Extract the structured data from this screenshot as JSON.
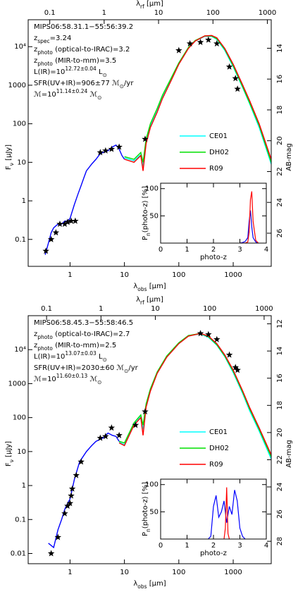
{
  "chart_data": [
    {
      "type": "line",
      "xlog": true,
      "ylog": true,
      "xlim": [
        0.17,
        5000
      ],
      "xticks": [
        1,
        10,
        100,
        1000
      ],
      "x2lim": [
        0.0401,
        1179
      ],
      "x2ticks": [
        0.1,
        1,
        10,
        100,
        1000
      ],
      "ylim": [
        0.02,
        50000
      ],
      "yticks": [
        {
          "value": 10000,
          "label": "10⁴"
        },
        1000,
        100,
        10,
        1,
        0.1
      ],
      "y2lim": [
        28.15,
        12.15
      ],
      "y2ticks": [
        14,
        16,
        18,
        20,
        22,
        24,
        26
      ],
      "xlabel": [
        {
          "text": "λ"
        },
        {
          "text": "obs",
          "shift": "sub"
        },
        {
          "text": " [µm]"
        }
      ],
      "x2label": [
        {
          "text": "λ"
        },
        {
          "text": "rf",
          "shift": "sub"
        },
        {
          "text": " [µm]"
        }
      ],
      "ylabel": [
        {
          "text": "F"
        },
        {
          "text": "ν",
          "shift": "sub"
        },
        {
          "text": " [µJy]"
        }
      ],
      "y2label": [
        {
          "text": "AB-mag"
        }
      ],
      "annotations": [
        {
          "color": "#000000",
          "parts": [
            {
              "text": "MIPS06:58.31.1−55:56:39.2"
            }
          ]
        },
        {
          "color": "#000000",
          "parts": [
            {
              "text": "z"
            },
            {
              "text": "spec",
              "shift": "sub"
            },
            {
              "text": "=3.24"
            }
          ]
        },
        {
          "color": "#0000ff",
          "parts": [
            {
              "text": "z"
            },
            {
              "text": "photo",
              "shift": "sub"
            },
            {
              "text": " (optical-to-IRAC)=3.2"
            }
          ]
        },
        {
          "color": "#ff0000",
          "parts": [
            {
              "text": "z"
            },
            {
              "text": "photo",
              "shift": "sub"
            },
            {
              "text": " (MIR-to-mm)=3.5"
            }
          ]
        },
        {
          "color": "#000000",
          "parts": [
            {
              "text": "L(IR)=10"
            },
            {
              "text": "12.72±0.04",
              "shift": "super"
            },
            {
              "text": " L"
            },
            {
              "text": "⊙",
              "shift": "sub"
            }
          ]
        },
        {
          "color": "#000000",
          "parts": [
            {
              "text": "SFR(UV+IR)=906±77 ℳ"
            },
            {
              "text": "⊙",
              "shift": "sub"
            },
            {
              "text": "/yr"
            }
          ]
        },
        {
          "color": "#000000",
          "parts": [
            {
              "text": "ℳ=10"
            },
            {
              "text": "11.14±0.24",
              "shift": "super"
            },
            {
              "text": " ℳ"
            },
            {
              "text": "⊙",
              "shift": "sub"
            }
          ]
        }
      ],
      "series": [
        {
          "color": "#0000ff",
          "x": [
            0.35,
            0.4,
            0.45,
            0.5,
            0.6,
            0.7,
            0.8,
            0.9,
            1.0,
            1.2,
            1.4,
            1.6,
            1.8,
            2.0,
            2.5,
            3.0,
            3.5,
            4.0,
            5.0,
            6.0,
            7.0,
            8.0,
            9.0,
            10
          ],
          "values": [
            0.04,
            0.08,
            0.15,
            0.2,
            0.25,
            0.25,
            0.3,
            0.3,
            0.35,
            0.8,
            1.5,
            2.5,
            4,
            6,
            9,
            12,
            16,
            18,
            20,
            25,
            28,
            22,
            15,
            12
          ]
        },
        {
          "name": "CE01",
          "color": "#00ffff",
          "x": [
            10,
            15,
            20,
            22,
            25,
            30,
            40,
            50,
            70,
            100,
            150,
            200,
            300,
            400,
            500,
            700,
            1000,
            1500,
            2000,
            3000,
            5000
          ],
          "values": [
            13,
            11,
            16,
            8,
            35,
            90,
            230,
            500,
            1300,
            3600,
            9200,
            14000,
            18500,
            18500,
            15500,
            8000,
            3000,
            850,
            330,
            80,
            9
          ]
        },
        {
          "name": "DH02",
          "color": "#00e000",
          "x": [
            10,
            15,
            20,
            22,
            25,
            30,
            40,
            50,
            70,
            100,
            150,
            200,
            300,
            400,
            500,
            700,
            1000,
            1500,
            2000,
            3000,
            5000
          ],
          "values": [
            14,
            12,
            18,
            10,
            40,
            100,
            250,
            550,
            1400,
            3800,
            9500,
            14500,
            19000,
            19000,
            16000,
            8500,
            3200,
            900,
            350,
            90,
            10
          ]
        },
        {
          "name": "R09",
          "color": "#ff0000",
          "x": [
            10,
            15,
            20,
            22,
            25,
            30,
            40,
            50,
            70,
            100,
            150,
            200,
            300,
            400,
            500,
            700,
            1000,
            1500,
            2000,
            3000,
            5000
          ],
          "values": [
            12,
            10,
            15,
            6,
            30,
            80,
            200,
            450,
            1200,
            3500,
            9000,
            14000,
            19000,
            19500,
            17000,
            9000,
            3500,
            1000,
            400,
            100,
            12
          ]
        },
        {
          "marker": "star",
          "color": "#000000",
          "x": [
            0.36,
            0.45,
            0.55,
            0.65,
            0.8,
            0.9,
            1.05,
            1.25,
            3.6,
            4.5,
            5.8,
            8.0,
            24,
            100,
            160,
            250,
            350,
            500,
            850,
            1100,
            1200
          ],
          "values": [
            0.05,
            0.1,
            0.15,
            0.25,
            0.25,
            0.28,
            0.3,
            0.3,
            18,
            20,
            22,
            25,
            40,
            8000,
            12000,
            13000,
            15000,
            12000,
            3000,
            1500,
            800
          ]
        }
      ]
    },
    {
      "type": "line",
      "xlim": [
        0,
        4
      ],
      "xticks": [
        0,
        1,
        2,
        3,
        4
      ],
      "ylim": [
        0,
        110
      ],
      "yticks": [
        50,
        100
      ],
      "xlabel": [
        {
          "text": "photo-z"
        }
      ],
      "ylabel": [
        {
          "text": "P"
        },
        {
          "text": "n",
          "shift": "sub"
        },
        {
          "text": "(photo-z) [%]"
        }
      ],
      "series": [
        {
          "color": "#0000ff",
          "x": [
            3.0,
            3.1,
            3.2,
            3.3,
            3.35,
            3.4,
            3.45,
            3.5,
            3.6,
            3.7
          ],
          "values": [
            0,
            1,
            3,
            10,
            40,
            60,
            30,
            10,
            2,
            0
          ]
        },
        {
          "color": "#ff0000",
          "x": [
            3.0,
            3.1,
            3.2,
            3.3,
            3.35,
            3.4,
            3.45,
            3.5,
            3.6,
            3.7
          ],
          "values": [
            0,
            0,
            0,
            2,
            20,
            80,
            95,
            40,
            5,
            0
          ]
        }
      ]
    },
    {
      "type": "line",
      "xlog": true,
      "ylog": true,
      "xlim": [
        0.17,
        5000
      ],
      "xticks": [
        1,
        10,
        100,
        1000
      ],
      "x2lim": [
        0.0459,
        1351
      ],
      "x2ticks": [
        0.1,
        1,
        10,
        100,
        1000
      ],
      "ylim": [
        0.005,
        100000
      ],
      "yticks": [
        {
          "value": 10000,
          "label": "10⁴"
        },
        1000,
        100,
        10,
        1,
        0.1,
        0.01
      ],
      "y2lim": [
        29.65,
        11.4
      ],
      "y2ticks": [
        12,
        14,
        16,
        18,
        20,
        22,
        24,
        26,
        28
      ],
      "xlabel": [
        {
          "text": "λ"
        },
        {
          "text": "obs",
          "shift": "sub"
        },
        {
          "text": " [µm]"
        }
      ],
      "x2label": [
        {
          "text": "λ"
        },
        {
          "text": "rf",
          "shift": "sub"
        },
        {
          "text": " [µm]"
        }
      ],
      "ylabel": [
        {
          "text": "F"
        },
        {
          "text": "ν",
          "shift": "sub"
        },
        {
          "text": " [µJy]"
        }
      ],
      "y2label": [
        {
          "text": "AB-mag"
        }
      ],
      "annotations": [
        {
          "color": "#000000",
          "parts": [
            {
              "text": "MIPS06:58.45.3−55:58:46.5"
            }
          ]
        },
        {
          "color": "#0000ff",
          "parts": [
            {
              "text": "z"
            },
            {
              "text": "photo",
              "shift": "sub"
            },
            {
              "text": " (optical-to-IRAC)=2.7"
            }
          ]
        },
        {
          "color": "#ff0000",
          "parts": [
            {
              "text": "z"
            },
            {
              "text": "photo",
              "shift": "sub"
            },
            {
              "text": " (MIR-to-mm)=2.5"
            }
          ]
        },
        {
          "color": "#000000",
          "parts": [
            {
              "text": "L(IR)=10"
            },
            {
              "text": "13.07±0.03",
              "shift": "super"
            },
            {
              "text": " L"
            },
            {
              "text": "⊙",
              "shift": "sub"
            }
          ]
        },
        {
          "color": "#000000",
          "parts": [
            {
              "text": "SFR(UV+IR)=2030±60 ℳ"
            },
            {
              "text": "⊙",
              "shift": "sub"
            },
            {
              "text": "/yr"
            }
          ]
        },
        {
          "color": "#000000",
          "parts": [
            {
              "text": "ℳ=10"
            },
            {
              "text": "11.60±0.13",
              "shift": "super"
            },
            {
              "text": " ℳ"
            },
            {
              "text": "⊙",
              "shift": "sub"
            }
          ]
        }
      ],
      "series": [
        {
          "color": "#0000ff",
          "x": [
            0.4,
            0.5,
            0.6,
            0.7,
            0.8,
            0.9,
            1.0,
            1.2,
            1.5,
            2.0,
            2.5,
            3.0,
            4.0,
            5.0,
            6.0,
            7.0,
            8.0
          ],
          "values": [
            0.02,
            0.015,
            0.05,
            0.1,
            0.2,
            0.3,
            0.4,
            1.5,
            5,
            10,
            15,
            20,
            25,
            35,
            30,
            28,
            20
          ]
        },
        {
          "name": "CE01",
          "color": "#00ffff",
          "x": [
            8,
            10,
            15,
            20,
            22,
            25,
            30,
            40,
            60,
            100,
            150,
            250,
            350,
            500,
            700,
            1000,
            1500,
            2000,
            3000,
            5000
          ],
          "values": [
            19,
            16,
            65,
            110,
            45,
            230,
            650,
            2100,
            6200,
            15500,
            25500,
            29000,
            23000,
            13500,
            6200,
            2100,
            500,
            160,
            40,
            6
          ]
        },
        {
          "name": "DH02",
          "color": "#00e000",
          "x": [
            8,
            10,
            15,
            20,
            22,
            25,
            30,
            40,
            60,
            100,
            150,
            250,
            350,
            500,
            700,
            1000,
            1500,
            2000,
            3000,
            5000
          ],
          "values": [
            20,
            18,
            70,
            120,
            60,
            250,
            700,
            2200,
            6500,
            16000,
            26000,
            30000,
            24000,
            14000,
            6500,
            2300,
            550,
            180,
            45,
            7
          ]
        },
        {
          "name": "R09",
          "color": "#ff0000",
          "x": [
            8,
            10,
            15,
            20,
            22,
            25,
            30,
            40,
            60,
            100,
            150,
            250,
            350,
            500,
            700,
            1000,
            1500,
            2000,
            3000,
            5000
          ],
          "values": [
            18,
            15,
            60,
            100,
            30,
            200,
            600,
            2000,
            6000,
            15000,
            25000,
            30000,
            25000,
            15000,
            7000,
            2500,
            600,
            200,
            50,
            8
          ]
        },
        {
          "marker": "star",
          "color": "#000000",
          "x": [
            0.45,
            0.6,
            0.8,
            0.9,
            1.0,
            1.05,
            1.1,
            1.3,
            1.6,
            3.6,
            4.5,
            5.8,
            8.0,
            16,
            24,
            250,
            350,
            500,
            850,
            1100,
            1200
          ],
          "values": [
            0.01,
            0.03,
            0.15,
            0.25,
            0.3,
            0.5,
            0.8,
            2,
            5,
            25,
            28,
            50,
            30,
            60,
            150,
            30000,
            28000,
            20000,
            7000,
            3000,
            2500
          ]
        }
      ]
    },
    {
      "type": "line",
      "xlim": [
        0,
        4
      ],
      "xticks": [
        0,
        1,
        2,
        3,
        4
      ],
      "ylim": [
        0,
        110
      ],
      "yticks": [
        50,
        100
      ],
      "xlabel": [
        {
          "text": "photo-z"
        }
      ],
      "ylabel": [
        {
          "text": "P"
        },
        {
          "text": "n",
          "shift": "sub"
        },
        {
          "text": "(photo-z) [%]"
        }
      ],
      "series": [
        {
          "color": "#0000ff",
          "x": [
            1.8,
            1.9,
            2.0,
            2.1,
            2.2,
            2.3,
            2.4,
            2.5,
            2.6,
            2.7,
            2.8,
            2.9,
            3.0,
            3.1,
            3.2
          ],
          "values": [
            0,
            5,
            60,
            80,
            40,
            50,
            70,
            30,
            60,
            45,
            90,
            70,
            20,
            5,
            0
          ]
        },
        {
          "color": "#ff0000",
          "x": [
            2.4,
            2.45,
            2.5,
            2.55,
            2.6
          ],
          "values": [
            0,
            20,
            95,
            10,
            0
          ]
        }
      ]
    }
  ]
}
